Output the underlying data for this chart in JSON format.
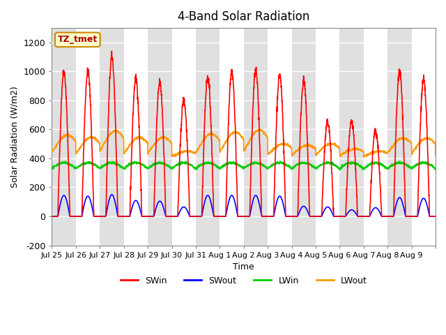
{
  "title": "4-Band Solar Radiation",
  "xlabel": "Time",
  "ylabel": "Solar Radiation (W/m2)",
  "ylim": [
    -200,
    1300
  ],
  "yticks": [
    -200,
    0,
    200,
    400,
    600,
    800,
    1000,
    1200
  ],
  "xtick_labels": [
    "Jul 25",
    "Jul 26",
    "Jul 27",
    "Jul 28",
    "Jul 29",
    "Jul 30",
    "Jul 31",
    "Aug 1",
    "Aug 2",
    "Aug 3",
    "Aug 4",
    "Aug 5",
    "Aug 6",
    "Aug 7",
    "Aug 8",
    "Aug 9",
    ""
  ],
  "colors": {
    "SWin": "#ff0000",
    "SWout": "#0000ff",
    "LWin": "#00cc00",
    "LWout": "#ff9900"
  },
  "annotation_text": "TZ_tmet",
  "annotation_bg": "#ffffcc",
  "annotation_border": "#cc8800",
  "bg_band_color": "#e0e0e0",
  "line_width": 1.2,
  "n_days": 16,
  "pts_per_day": 144,
  "SWin_peaks": [
    1000,
    1000,
    1100,
    950,
    920,
    800,
    960,
    1000,
    1000,
    975,
    930,
    650,
    650,
    590,
    1000,
    940
  ],
  "SWout_peaks": [
    145,
    140,
    150,
    110,
    105,
    65,
    145,
    145,
    145,
    140,
    70,
    65,
    45,
    60,
    130,
    125
  ],
  "LWout_day_peaks": [
    560,
    545,
    590,
    545,
    545,
    450,
    570,
    580,
    595,
    500,
    490,
    500,
    465,
    450,
    540,
    540
  ],
  "LWout_day_nights": [
    400,
    390,
    400,
    390,
    395,
    400,
    390,
    390,
    395,
    400,
    395,
    395,
    400,
    400,
    400,
    395
  ],
  "LWin_base": 330
}
